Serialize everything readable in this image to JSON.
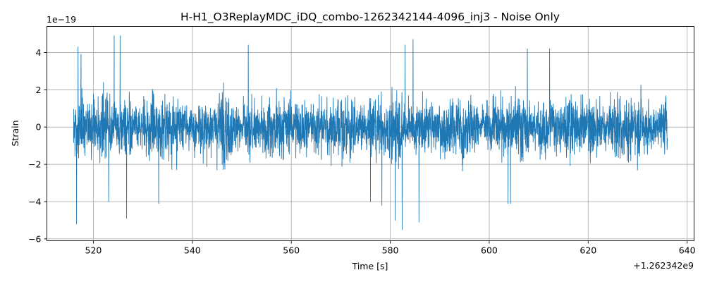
{
  "chart_data": {
    "type": "line",
    "title": "H-H1_O3ReplayMDC_iDQ_combo-1262342144-4096_inj3 - Noise Only",
    "xlabel": "Time [s]",
    "ylabel": "Strain",
    "x_offset_label": "+1.262342e9",
    "y_scale_label": "1e−19",
    "xlim": [
      510.6,
      641.4
    ],
    "ylim": [
      -6.1,
      5.4
    ],
    "x_ticks": [
      520,
      540,
      560,
      580,
      600,
      620,
      640
    ],
    "x_tick_labels": [
      "520",
      "540",
      "560",
      "580",
      "600",
      "620",
      "640"
    ],
    "y_ticks": [
      -6,
      -4,
      -2,
      0,
      2,
      4
    ],
    "y_tick_labels": [
      "−6",
      "−4",
      "−2",
      "0",
      "2",
      "4"
    ],
    "grid": true,
    "series": [
      {
        "color": "#1f77b4",
        "x_start": 516.0,
        "x_end": 636.0,
        "typical_amplitude": 2.2,
        "peaks": [
          {
            "x": 516.6,
            "y": -5.2
          },
          {
            "x": 516.9,
            "y": 4.3
          },
          {
            "x": 517.5,
            "y": 3.9
          },
          {
            "x": 523.1,
            "y": -4.0
          },
          {
            "x": 524.2,
            "y": 4.9
          },
          {
            "x": 525.4,
            "y": 4.9
          },
          {
            "x": 526.7,
            "y": -4.9
          },
          {
            "x": 533.2,
            "y": -4.1
          },
          {
            "x": 551.3,
            "y": 4.4
          },
          {
            "x": 576.0,
            "y": -4.0
          },
          {
            "x": 578.3,
            "y": -4.2
          },
          {
            "x": 581.0,
            "y": -5.0
          },
          {
            "x": 582.4,
            "y": -5.5
          },
          {
            "x": 583.0,
            "y": 4.4
          },
          {
            "x": 584.6,
            "y": 4.7
          },
          {
            "x": 585.8,
            "y": -5.1
          },
          {
            "x": 603.8,
            "y": -4.1
          },
          {
            "x": 604.3,
            "y": -4.1
          },
          {
            "x": 607.7,
            "y": 4.2
          },
          {
            "x": 612.2,
            "y": 4.2
          }
        ]
      }
    ]
  }
}
